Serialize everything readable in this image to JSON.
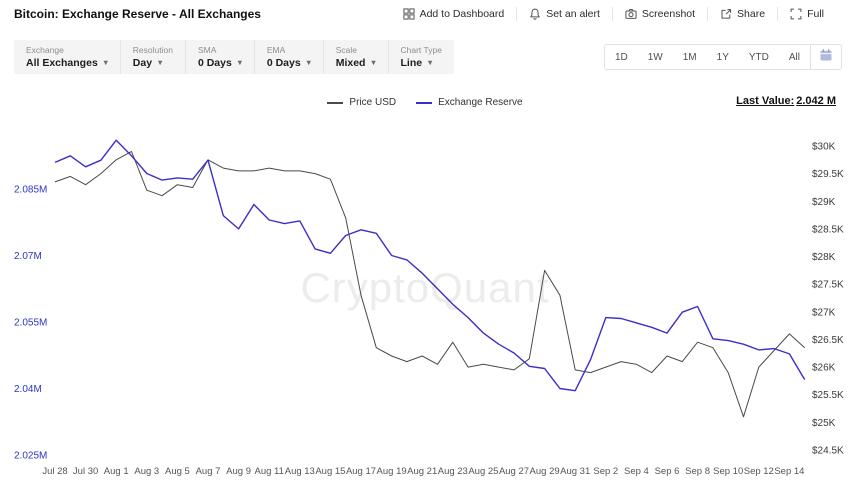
{
  "header": {
    "title": "Bitcoin: Exchange Reserve - All Exchanges",
    "actions": [
      {
        "label": "Add to Dashboard",
        "icon": "dashboard-icon"
      },
      {
        "label": "Set an alert",
        "icon": "bell-icon"
      },
      {
        "label": "Screenshot",
        "icon": "camera-icon"
      },
      {
        "label": "Share",
        "icon": "share-icon"
      },
      {
        "label": "Full",
        "icon": "fullscreen-icon"
      }
    ]
  },
  "toolbar": {
    "groups": [
      {
        "label": "Exchange",
        "value": "All Exchanges"
      },
      {
        "label": "Resolution",
        "value": "Day"
      },
      {
        "label": "SMA",
        "value": "0 Days"
      },
      {
        "label": "EMA",
        "value": "0 Days"
      },
      {
        "label": "Scale",
        "value": "Mixed"
      },
      {
        "label": "Chart Type",
        "value": "Line"
      }
    ]
  },
  "timerange": {
    "items": [
      "1D",
      "1W",
      "1M",
      "1Y",
      "YTD",
      "All"
    ],
    "calendar_icon": "calendar-icon"
  },
  "legend": {
    "items": [
      {
        "label": "Price USD",
        "color": "#4a4a4a"
      },
      {
        "label": "Exchange Reserve",
        "color": "#3b2fc9"
      }
    ]
  },
  "last_value": {
    "label": "Last Value:",
    "value": "2.042 M"
  },
  "watermark": "CryptoQuant",
  "colors": {
    "price_line": "#4a4a4a",
    "reserve_line": "#3b2fc9",
    "left_axis_labels": "#2c35c8",
    "right_axis_labels": "#3a3a3a",
    "x_axis_labels": "#555555"
  },
  "chart_data": {
    "type": "line",
    "title": "Bitcoin: Exchange Reserve - All Exchanges",
    "x": [
      "Jul 28",
      "Jul 29",
      "Jul 30",
      "Jul 31",
      "Aug 1",
      "Aug 2",
      "Aug 3",
      "Aug 4",
      "Aug 5",
      "Aug 6",
      "Aug 7",
      "Aug 8",
      "Aug 9",
      "Aug 10",
      "Aug 11",
      "Aug 12",
      "Aug 13",
      "Aug 14",
      "Aug 15",
      "Aug 16",
      "Aug 17",
      "Aug 18",
      "Aug 19",
      "Aug 20",
      "Aug 21",
      "Aug 22",
      "Aug 23",
      "Aug 24",
      "Aug 25",
      "Aug 26",
      "Aug 27",
      "Aug 28",
      "Aug 29",
      "Aug 30",
      "Aug 31",
      "Sep 1",
      "Sep 2",
      "Sep 3",
      "Sep 4",
      "Sep 5",
      "Sep 6",
      "Sep 7",
      "Sep 8",
      "Sep 9",
      "Sep 10",
      "Sep 11",
      "Sep 12",
      "Sep 13",
      "Sep 14",
      "Sep 15"
    ],
    "x_tick_step": 2,
    "series": [
      {
        "name": "Price USD",
        "axis": "right",
        "unit": "USD (K)",
        "color": "#4a4a4a",
        "values": [
          29.35,
          29.45,
          29.3,
          29.5,
          29.75,
          29.9,
          29.2,
          29.1,
          29.3,
          29.25,
          29.75,
          29.6,
          29.55,
          29.55,
          29.6,
          29.55,
          29.55,
          29.5,
          29.4,
          28.7,
          27.3,
          26.35,
          26.2,
          26.1,
          26.2,
          26.05,
          26.45,
          26.0,
          26.05,
          26.0,
          25.95,
          26.15,
          27.75,
          27.3,
          25.95,
          25.9,
          26.0,
          26.1,
          26.05,
          25.9,
          26.2,
          26.1,
          26.45,
          26.35,
          25.9,
          25.1,
          26.0,
          26.3,
          26.6,
          26.35
        ]
      },
      {
        "name": "Exchange Reserve",
        "axis": "left",
        "unit": "M BTC",
        "color": "#3b2fc9",
        "values": [
          2.091,
          2.0925,
          2.09,
          2.0915,
          2.096,
          2.0925,
          2.0885,
          2.087,
          2.0875,
          2.0872,
          2.0915,
          2.079,
          2.076,
          2.0815,
          2.078,
          2.0772,
          2.0778,
          2.0715,
          2.0705,
          2.0745,
          2.0758,
          2.075,
          2.07,
          2.069,
          2.066,
          2.0625,
          2.059,
          2.056,
          2.0525,
          2.05,
          2.048,
          2.045,
          2.0445,
          2.04,
          2.0395,
          2.0465,
          2.056,
          2.0558,
          2.0548,
          2.0538,
          2.0525,
          2.0572,
          2.0585,
          2.0512,
          2.0508,
          2.05,
          2.0487,
          2.049,
          2.0478,
          2.042
        ]
      }
    ],
    "left_axis": {
      "labels": [
        "2.085M",
        "2.07M",
        "2.055M",
        "2.04M",
        "2.025M"
      ],
      "ticks": [
        2.085,
        2.07,
        2.055,
        2.04,
        2.025
      ],
      "range": [
        2.025,
        2.0925
      ]
    },
    "right_axis": {
      "labels": [
        "$30K",
        "$29.5K",
        "$29K",
        "$28.5K",
        "$28K",
        "$27.5K",
        "$27K",
        "$26.5K",
        "$26K",
        "$25.5K",
        "$25K",
        "$24.5K"
      ],
      "ticks": [
        30,
        29.5,
        29,
        28.5,
        28,
        27.5,
        27,
        26.5,
        26,
        25.5,
        25,
        24.5
      ],
      "range": [
        24.5,
        30.1
      ]
    },
    "grid": false,
    "legend_position": "top-center"
  }
}
